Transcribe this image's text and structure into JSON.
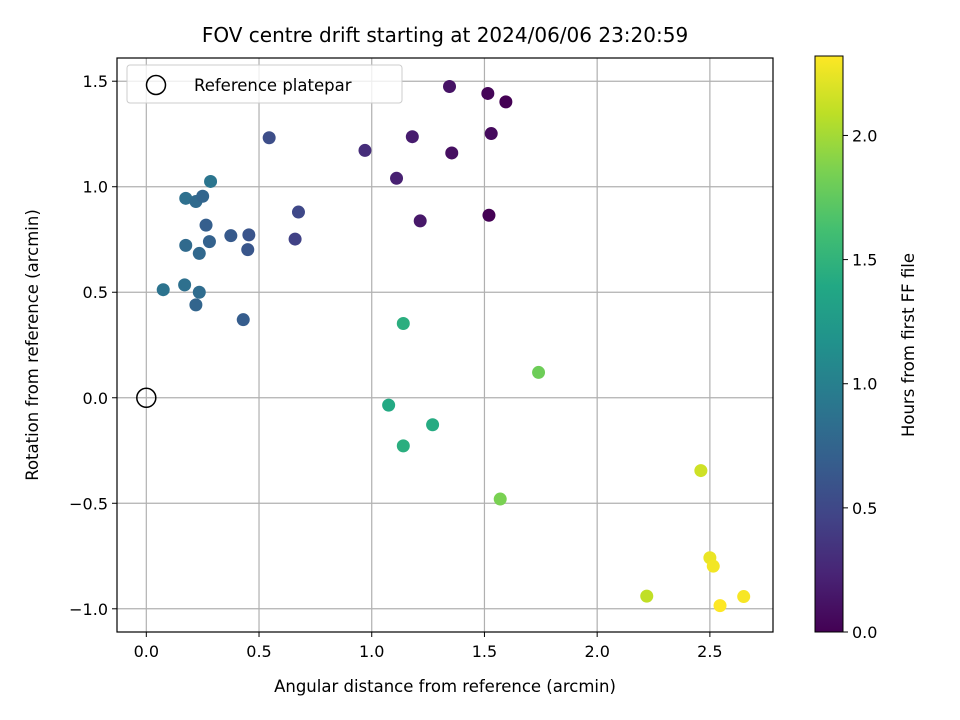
{
  "chart_data": {
    "type": "scatter",
    "title": "FOV centre drift starting at 2024/06/06 23:20:59",
    "xlabel": "Angular distance from reference (arcmin)",
    "ylabel": "Rotation from reference (arcmin)",
    "xlim": [
      -0.13,
      2.78
    ],
    "ylim": [
      -1.11,
      1.61
    ],
    "xticks": [
      0.0,
      0.5,
      1.0,
      1.5,
      2.0,
      2.5
    ],
    "xtick_labels": [
      "0.0",
      "0.5",
      "1.0",
      "1.5",
      "2.0",
      "2.5"
    ],
    "yticks": [
      -1.0,
      -0.5,
      0.0,
      0.5,
      1.0,
      1.5
    ],
    "ytick_labels": [
      "−1.0",
      "−0.5",
      "0.0",
      "0.5",
      "1.0",
      "1.5"
    ],
    "grid": true,
    "legend": {
      "placement": "upper-left",
      "entries": [
        {
          "label": "Reference platepar",
          "marker": "open-circle"
        }
      ]
    },
    "reference_point": {
      "x": 0.0,
      "y": 0.0
    },
    "colorbar": {
      "label": "Hours from first FF file",
      "range": [
        0.0,
        2.32
      ],
      "ticks": [
        0.0,
        0.5,
        1.0,
        1.5,
        2.0
      ],
      "tick_labels": [
        "0.0",
        "0.5",
        "1.0",
        "1.5",
        "2.0"
      ],
      "colormap": "viridis"
    },
    "points": [
      {
        "x": 1.345,
        "y": 1.475,
        "c": 0.12
      },
      {
        "x": 1.515,
        "y": 1.442,
        "c": 0.03
      },
      {
        "x": 1.595,
        "y": 1.402,
        "c": 0.0
      },
      {
        "x": 1.18,
        "y": 1.237,
        "c": 0.18
      },
      {
        "x": 1.53,
        "y": 1.252,
        "c": 0.06
      },
      {
        "x": 1.355,
        "y": 1.16,
        "c": 0.09
      },
      {
        "x": 0.97,
        "y": 1.172,
        "c": 0.3
      },
      {
        "x": 1.11,
        "y": 1.04,
        "c": 0.21
      },
      {
        "x": 1.52,
        "y": 0.865,
        "c": 0.0
      },
      {
        "x": 1.215,
        "y": 0.838,
        "c": 0.15
      },
      {
        "x": 0.545,
        "y": 1.232,
        "c": 0.55
      },
      {
        "x": 0.675,
        "y": 0.88,
        "c": 0.5
      },
      {
        "x": 0.66,
        "y": 0.752,
        "c": 0.45
      },
      {
        "x": 0.175,
        "y": 0.945,
        "c": 0.85
      },
      {
        "x": 0.22,
        "y": 0.93,
        "c": 0.8
      },
      {
        "x": 0.25,
        "y": 0.955,
        "c": 0.75
      },
      {
        "x": 0.285,
        "y": 1.025,
        "c": 0.9
      },
      {
        "x": 0.265,
        "y": 0.818,
        "c": 0.7
      },
      {
        "x": 0.375,
        "y": 0.768,
        "c": 0.65
      },
      {
        "x": 0.455,
        "y": 0.772,
        "c": 0.6
      },
      {
        "x": 0.28,
        "y": 0.74,
        "c": 0.72
      },
      {
        "x": 0.45,
        "y": 0.702,
        "c": 0.62
      },
      {
        "x": 0.175,
        "y": 0.722,
        "c": 0.8
      },
      {
        "x": 0.235,
        "y": 0.684,
        "c": 0.78
      },
      {
        "x": 0.17,
        "y": 0.535,
        "c": 0.85
      },
      {
        "x": 0.075,
        "y": 0.512,
        "c": 0.88
      },
      {
        "x": 0.235,
        "y": 0.5,
        "c": 0.82
      },
      {
        "x": 0.22,
        "y": 0.44,
        "c": 0.75
      },
      {
        "x": 0.43,
        "y": 0.37,
        "c": 0.68
      },
      {
        "x": 1.14,
        "y": 0.352,
        "c": 1.45
      },
      {
        "x": 1.075,
        "y": -0.035,
        "c": 1.4
      },
      {
        "x": 1.27,
        "y": -0.128,
        "c": 1.42
      },
      {
        "x": 1.14,
        "y": -0.228,
        "c": 1.45
      },
      {
        "x": 1.74,
        "y": 0.12,
        "c": 1.8
      },
      {
        "x": 1.57,
        "y": -0.48,
        "c": 1.85
      },
      {
        "x": 2.46,
        "y": -0.345,
        "c": 2.15
      },
      {
        "x": 2.22,
        "y": -0.94,
        "c": 2.1
      },
      {
        "x": 2.5,
        "y": -0.758,
        "c": 2.25
      },
      {
        "x": 2.515,
        "y": -0.798,
        "c": 2.28
      },
      {
        "x": 2.65,
        "y": -0.942,
        "c": 2.3
      },
      {
        "x": 2.545,
        "y": -0.985,
        "c": 2.32
      }
    ]
  }
}
